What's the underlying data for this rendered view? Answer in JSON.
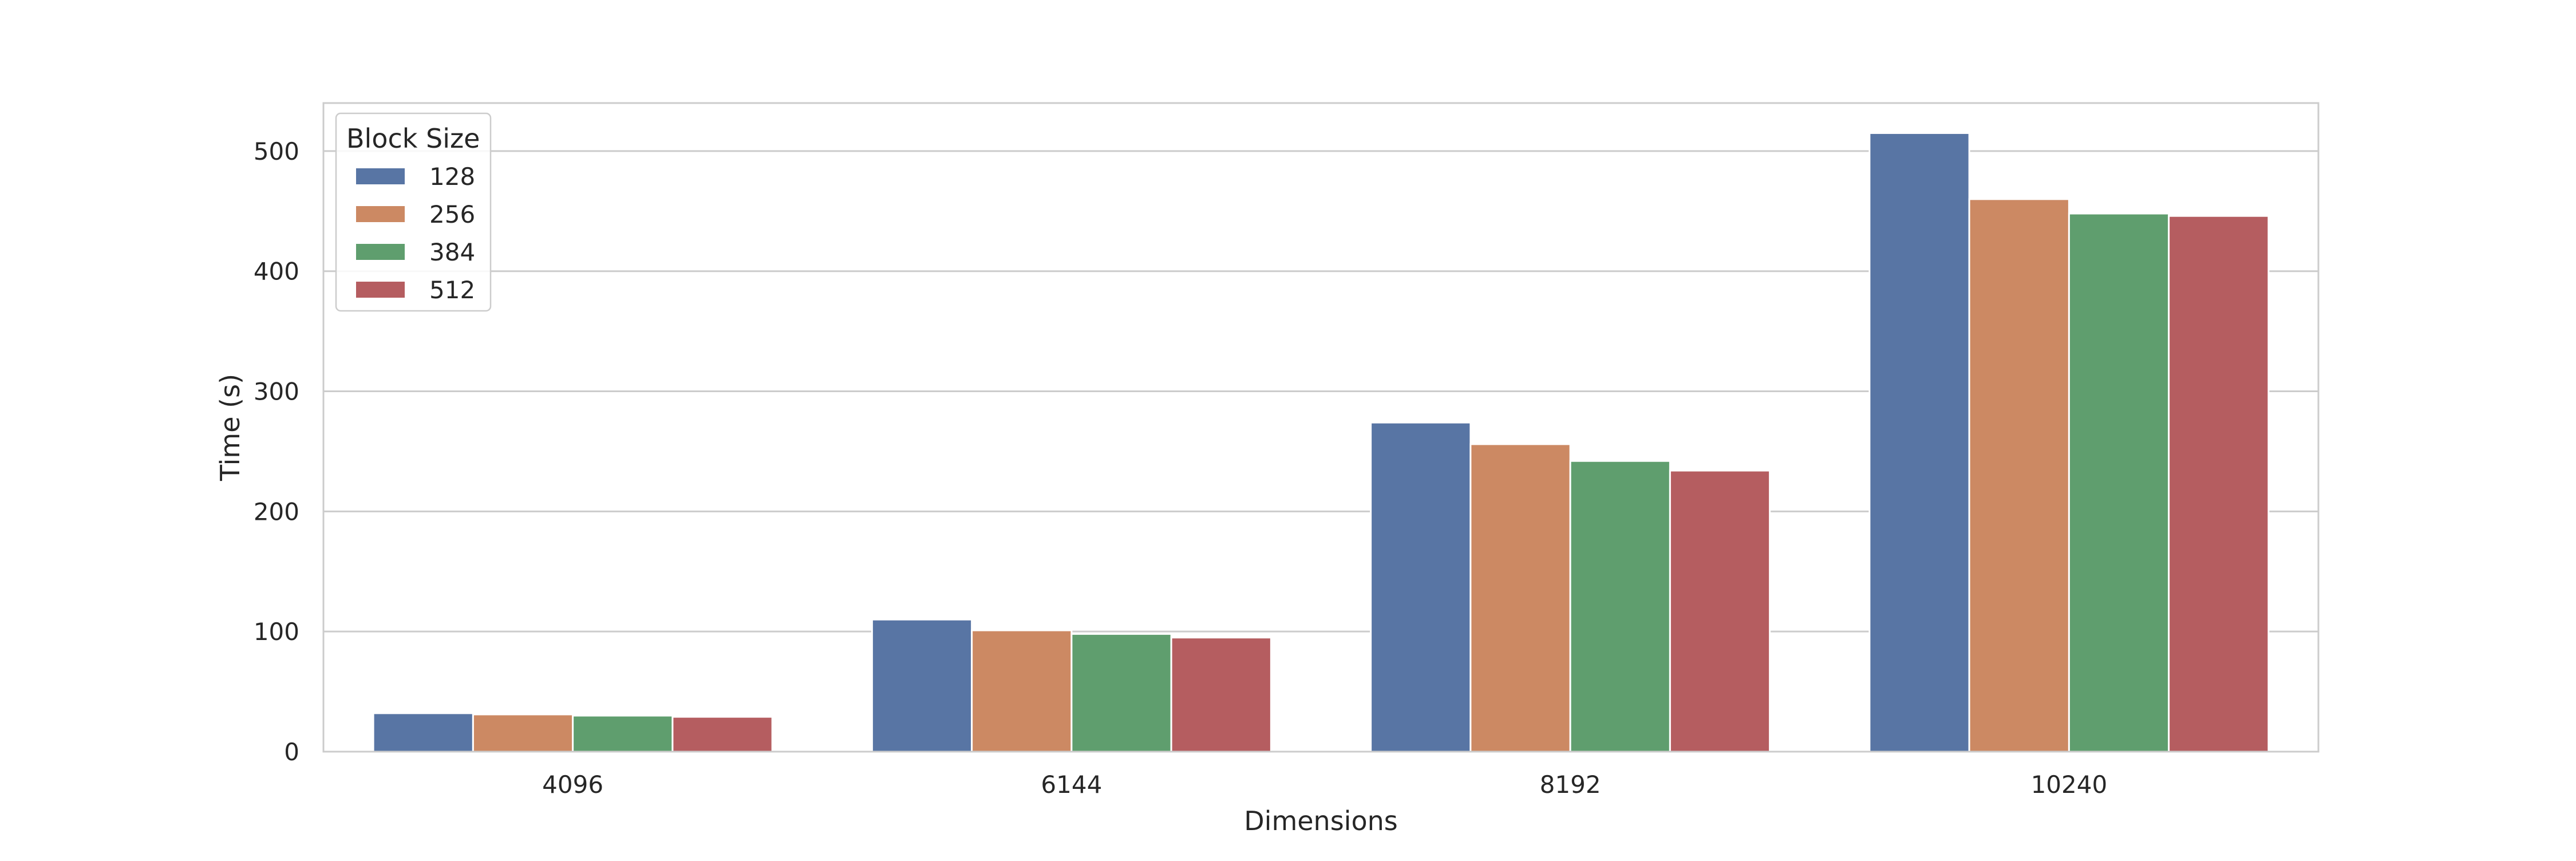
{
  "chart_data": {
    "type": "bar",
    "title": "",
    "xlabel": "Dimensions",
    "ylabel": "Time (s)",
    "categories": [
      "4096",
      "6144",
      "8192",
      "10240"
    ],
    "ylim": [
      0,
      540
    ],
    "yticks": [
      0,
      100,
      200,
      300,
      400,
      500
    ],
    "grid": "horizontal",
    "legend": {
      "title": "Block Size",
      "placement": "top-left"
    },
    "series": [
      {
        "name": "128",
        "color": "#5875a4",
        "values": [
          32,
          110,
          274,
          515
        ]
      },
      {
        "name": "256",
        "color": "#cc8963",
        "values": [
          31,
          101,
          256,
          460
        ]
      },
      {
        "name": "384",
        "color": "#5f9e6e",
        "values": [
          30,
          98,
          242,
          448
        ]
      },
      {
        "name": "512",
        "color": "#b55d60",
        "values": [
          29,
          95,
          234,
          446
        ]
      }
    ]
  }
}
